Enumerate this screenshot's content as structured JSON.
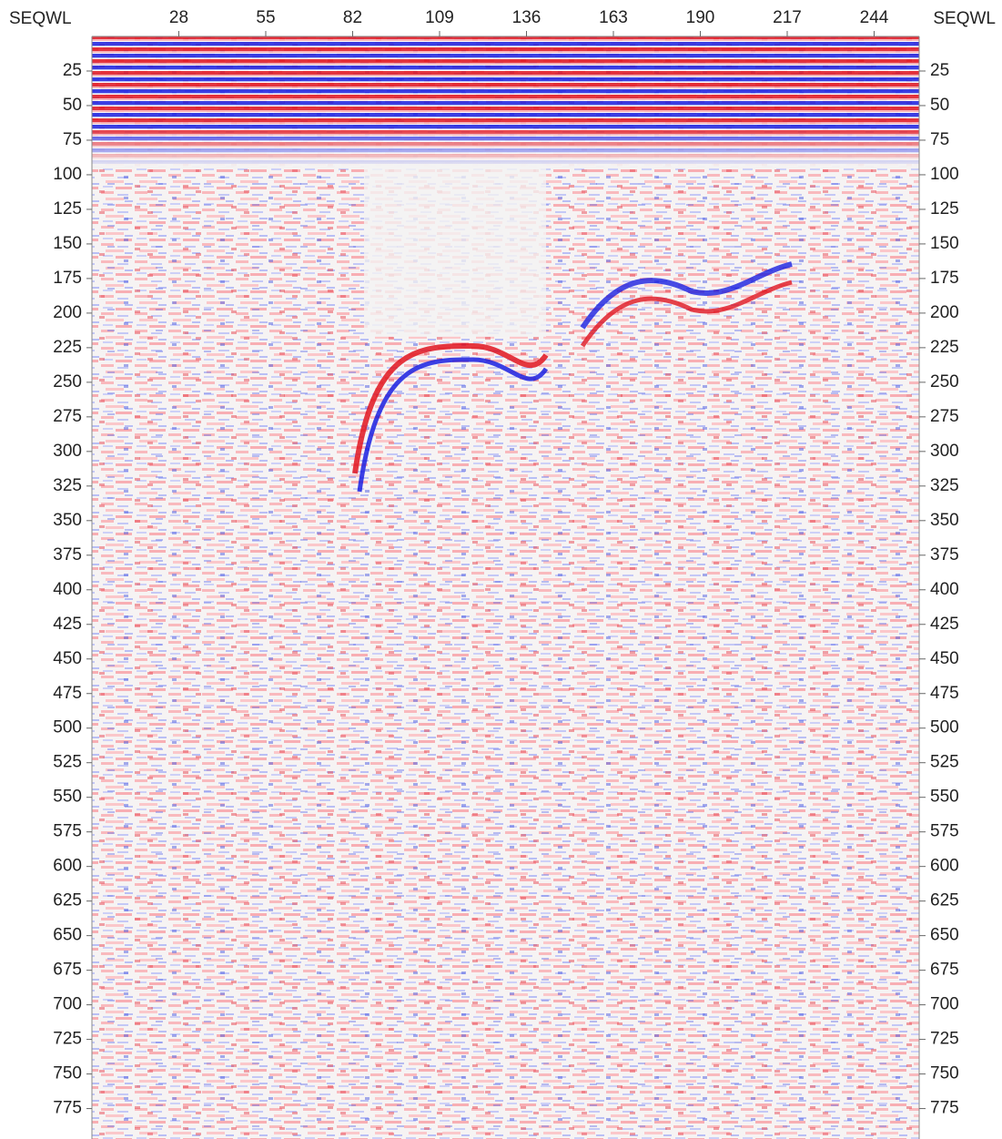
{
  "chart_data": {
    "type": "image",
    "x_label": "SEQWL",
    "xlim": [
      1,
      258
    ],
    "xticks": [
      28,
      55,
      82,
      109,
      136,
      163,
      190,
      217,
      244
    ],
    "ylim": [
      0,
      797
    ],
    "y_inverted": true,
    "yticks": [
      25,
      50,
      75,
      100,
      125,
      150,
      175,
      200,
      225,
      250,
      275,
      300,
      325,
      350,
      375,
      400,
      425,
      450,
      475,
      500,
      525,
      550,
      575,
      600,
      625,
      650,
      675,
      700,
      725,
      750,
      775
    ]
  }
}
